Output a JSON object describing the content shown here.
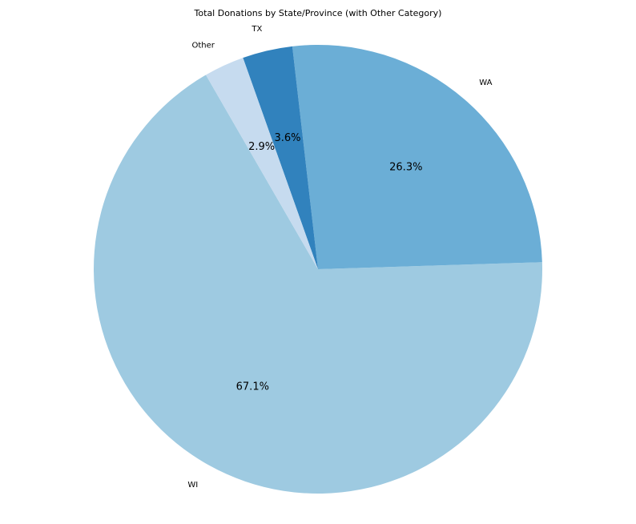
{
  "chart_data": {
    "type": "pie",
    "title": "Total Donations by State/Province (with Other Category)",
    "categories": [
      "WI",
      "WA",
      "TX",
      "Other"
    ],
    "values": [
      67.1,
      26.3,
      3.6,
      2.9
    ],
    "percent_labels": [
      "67.1%",
      "26.3%",
      "3.6%",
      "2.9%"
    ],
    "colors": [
      "#9ecae1",
      "#6baed6",
      "#3182bd",
      "#c6dbef"
    ],
    "start_angle_deg": 120,
    "direction": "counterclockwise",
    "legend": "none"
  }
}
